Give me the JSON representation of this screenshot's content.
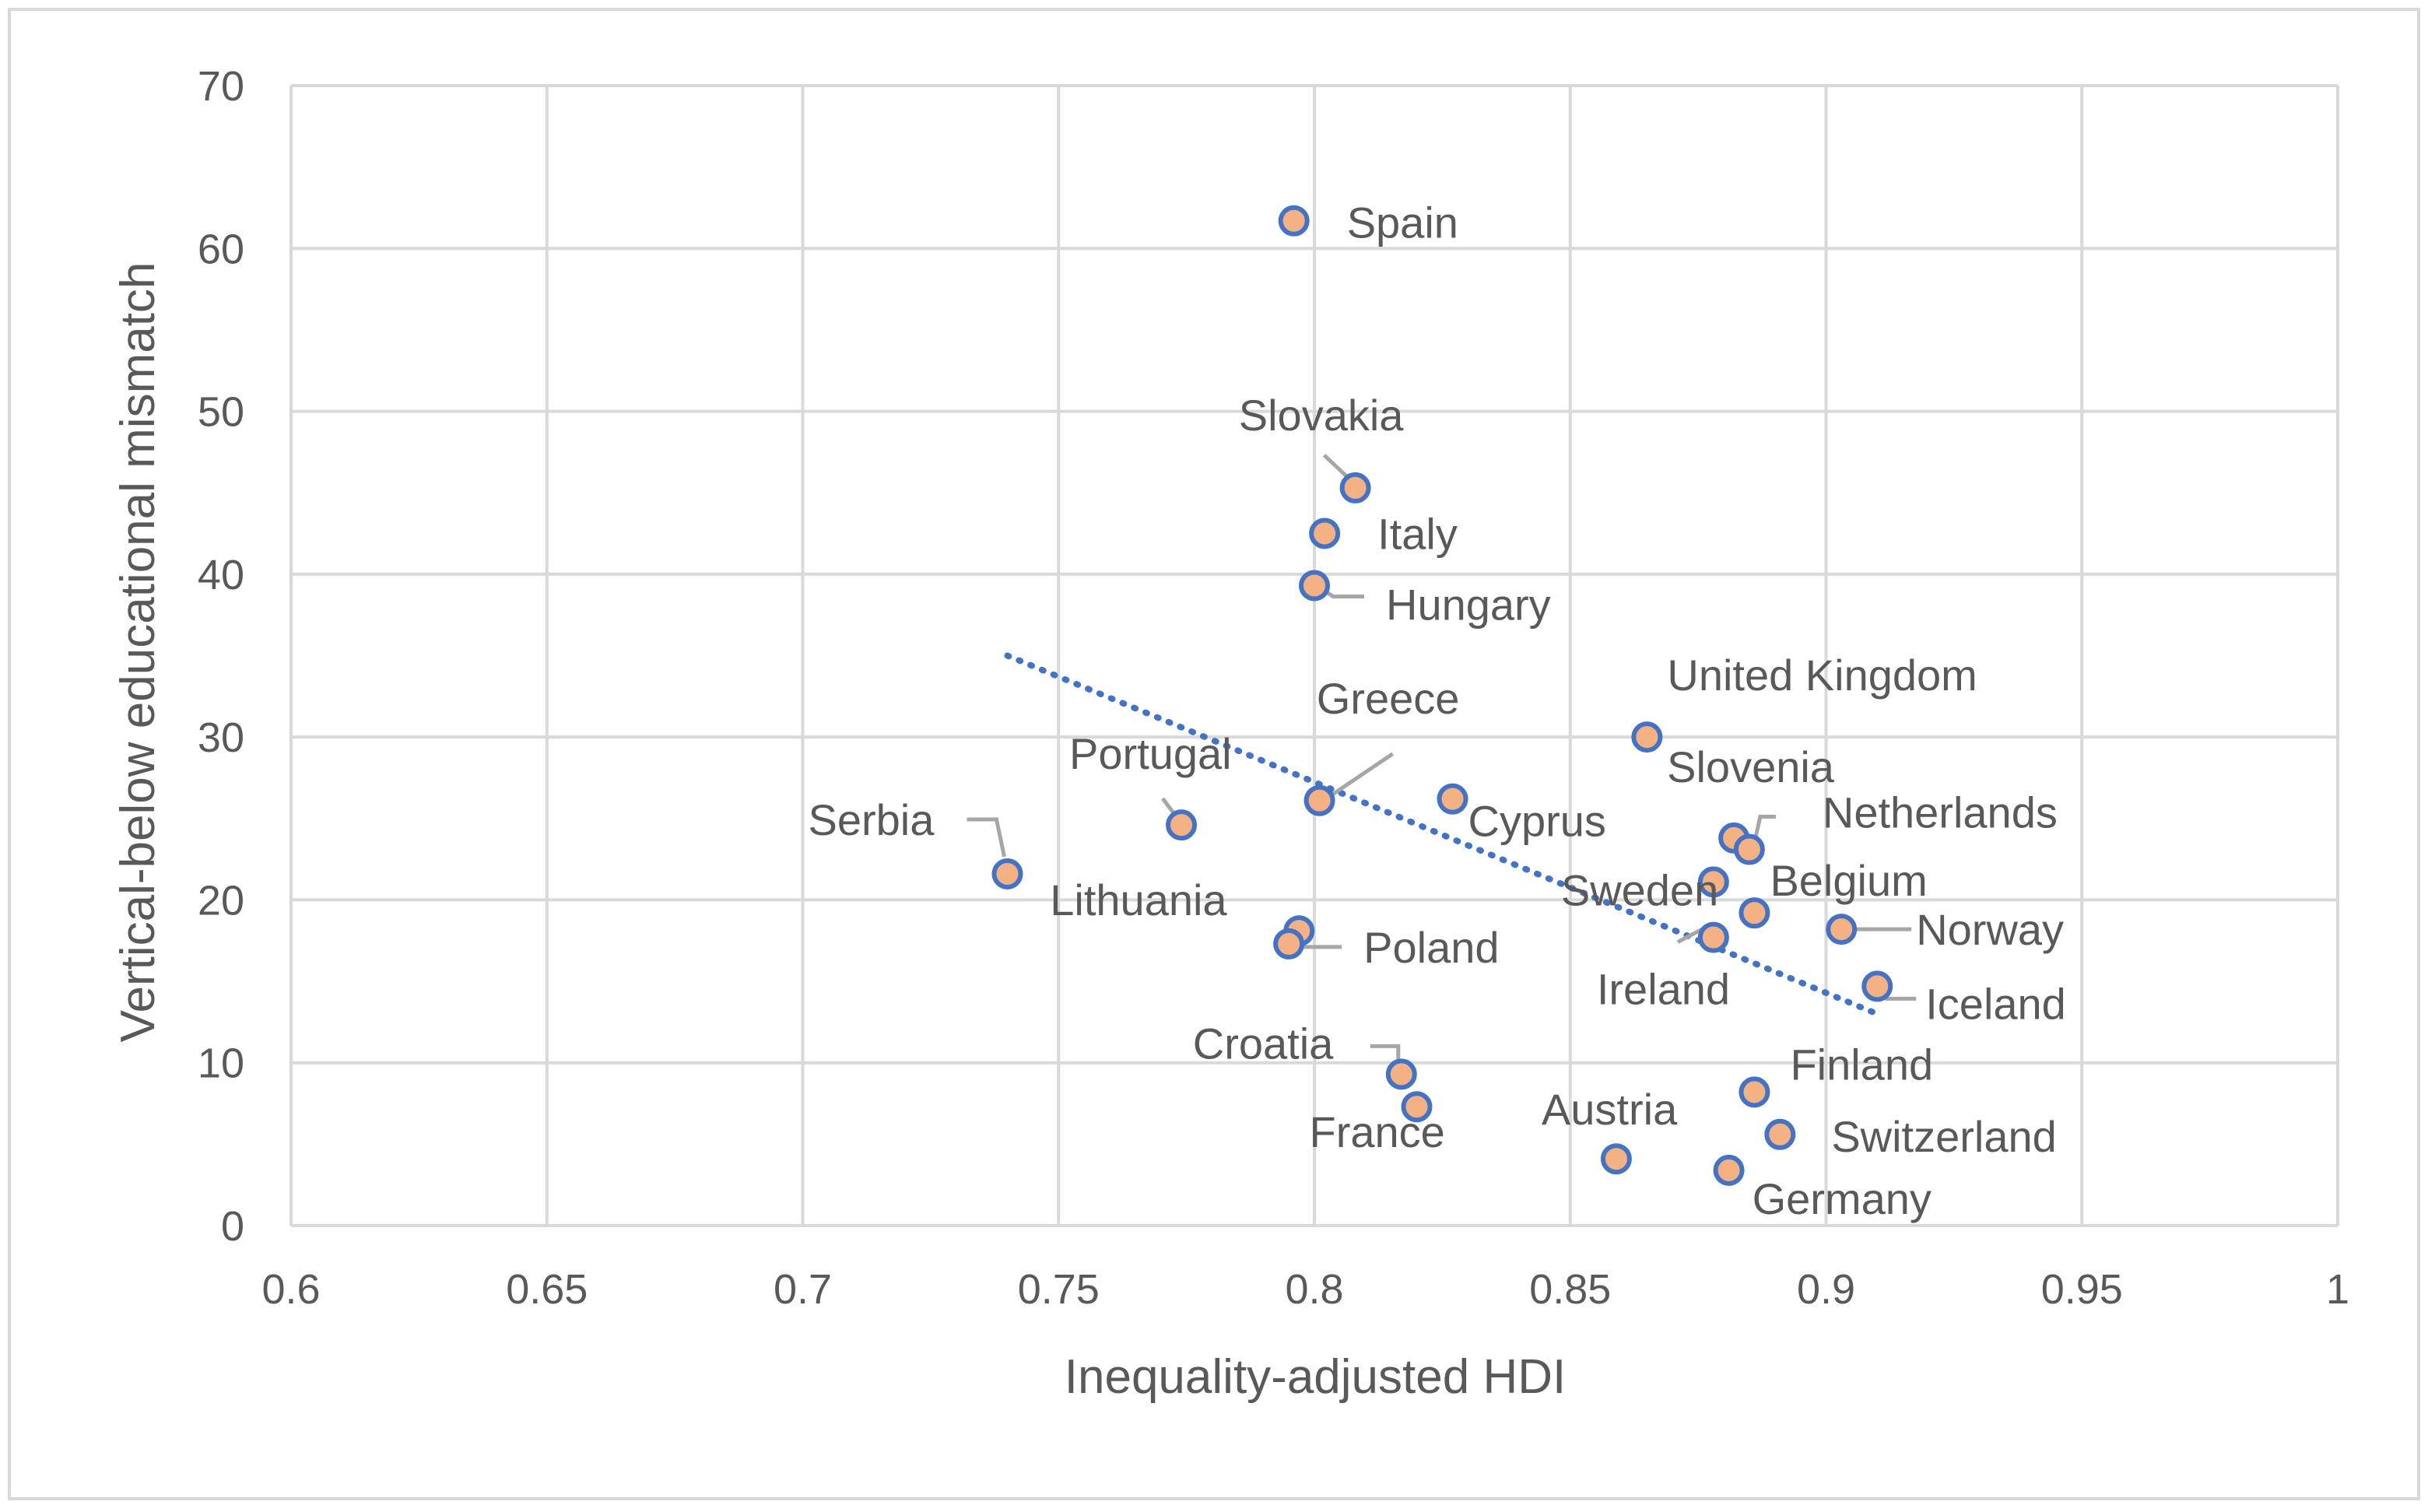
{
  "chart_data": {
    "type": "scatter",
    "title": "",
    "xlabel": "Inequality-adjusted HDI",
    "ylabel": "Vertical-below educational mismatch",
    "xlim": [
      0.6,
      1
    ],
    "ylim": [
      0,
      70
    ],
    "xticks": [
      0.6,
      0.65,
      0.7,
      0.75,
      0.8,
      0.85,
      0.9,
      0.95,
      1
    ],
    "xtick_labels": [
      "0.6",
      "0.65",
      "0.7",
      "0.75",
      "0.8",
      "0.85",
      "0.9",
      "0.95",
      "1"
    ],
    "yticks": [
      0,
      10,
      20,
      30,
      40,
      50,
      60,
      70
    ],
    "ytick_labels": [
      "0",
      "10",
      "20",
      "30",
      "40",
      "50",
      "60",
      "70"
    ],
    "grid": true,
    "legend": "none",
    "colors": {
      "marker_fill": "#f4b183",
      "marker_edge": "#4472c4",
      "trendline": "#4472c4",
      "grid": "#d9d9d9",
      "leader": "#a6a6a6",
      "text": "#595959",
      "border": "#d9d9d9"
    },
    "trendline": {
      "style": "dotted",
      "x": [
        0.74,
        0.91
      ],
      "y": [
        35.0,
        13.0
      ]
    },
    "points": [
      {
        "label": "Spain",
        "x": 0.796,
        "y": 61.7
      },
      {
        "label": "Slovakia",
        "x": 0.808,
        "y": 45.3
      },
      {
        "label": "Italy",
        "x": 0.802,
        "y": 42.5
      },
      {
        "label": "Hungary",
        "x": 0.8,
        "y": 39.3
      },
      {
        "label": "United Kingdom",
        "x": 0.865,
        "y": 30.0
      },
      {
        "label": "Greece",
        "x": 0.801,
        "y": 26.1
      },
      {
        "label": "Cyprus",
        "x": 0.827,
        "y": 26.2
      },
      {
        "label": "Portugal",
        "x": 0.774,
        "y": 24.6
      },
      {
        "label": "Serbia",
        "x": 0.74,
        "y": 21.6
      },
      {
        "label": "Slovenia",
        "x": 0.882,
        "y": 23.8
      },
      {
        "label": "Netherlands",
        "x": 0.885,
        "y": 23.1
      },
      {
        "label": "Sweden",
        "x": 0.878,
        "y": 21.1
      },
      {
        "label": "Belgium",
        "x": 0.886,
        "y": 19.2
      },
      {
        "label": "Norway",
        "x": 0.903,
        "y": 18.2
      },
      {
        "label": "Ireland",
        "x": 0.878,
        "y": 17.7
      },
      {
        "label": "Lithuania",
        "x": 0.797,
        "y": 18.1
      },
      {
        "label": "Poland",
        "x": 0.795,
        "y": 17.3
      },
      {
        "label": "Iceland",
        "x": 0.91,
        "y": 14.7
      },
      {
        "label": "Croatia",
        "x": 0.817,
        "y": 9.3
      },
      {
        "label": "France",
        "x": 0.82,
        "y": 7.3
      },
      {
        "label": "Finland",
        "x": 0.886,
        "y": 8.2
      },
      {
        "label": "Austria",
        "x": 0.859,
        "y": 4.1
      },
      {
        "label": "Switzerland",
        "x": 0.891,
        "y": 5.6
      },
      {
        "label": "Germany",
        "x": 0.881,
        "y": 3.4
      }
    ]
  }
}
